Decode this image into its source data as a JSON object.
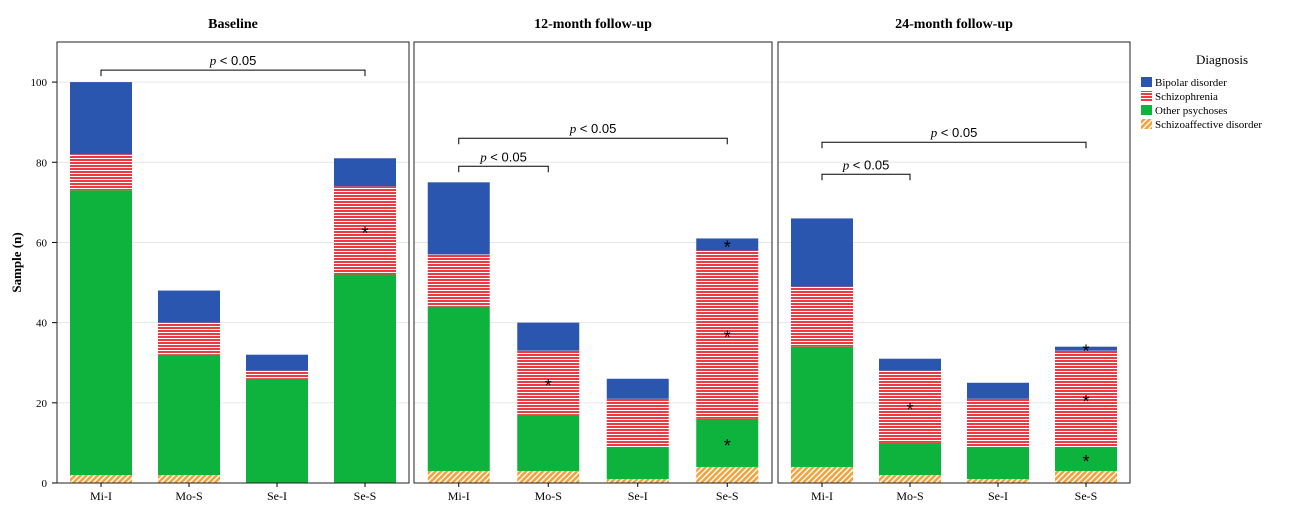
{
  "chart_data": {
    "type": "bar",
    "stacked": true,
    "ylabel": "Sample (n)",
    "ylim": [
      0,
      110
    ],
    "yticks": [
      0,
      20,
      40,
      60,
      80,
      100
    ],
    "categories": [
      "Mi-I",
      "Mo-S",
      "Se-I",
      "Se-S"
    ],
    "legend": {
      "title": "Diagnosis",
      "position": "right",
      "items": [
        {
          "key": "bipolar",
          "label": "Bipolar disorder"
        },
        {
          "key": "schizophrenia",
          "label": "Schizophrenia"
        },
        {
          "key": "other",
          "label": "Other psychoses"
        },
        {
          "key": "schizoaffective",
          "label": "Schizoaffective disorder"
        }
      ]
    },
    "colors": {
      "bipolar": "#2b56b0",
      "schizophrenia": "#ee3b43",
      "other": "#0db33c",
      "schizoaffective": "#f2a23c"
    },
    "stack_order": [
      "schizoaffective",
      "other",
      "schizophrenia",
      "bipolar"
    ],
    "panels": [
      {
        "title": "Baseline",
        "series": [
          {
            "key": "schizoaffective",
            "values": [
              2,
              2,
              0,
              0
            ]
          },
          {
            "key": "other",
            "values": [
              71,
              30,
              26,
              52
            ]
          },
          {
            "key": "schizophrenia",
            "values": [
              9,
              8,
              2,
              22
            ]
          },
          {
            "key": "bipolar",
            "values": [
              18,
              8,
              4,
              7
            ]
          }
        ],
        "significance": [
          {
            "from": 0,
            "to": 3,
            "level": 103,
            "p": "p",
            "text": " < 0.05"
          }
        ],
        "stars": [
          {
            "category": 3,
            "series": "schizophrenia"
          }
        ]
      },
      {
        "title": "12-month follow-up",
        "series": [
          {
            "key": "schizoaffective",
            "values": [
              3,
              3,
              1,
              4
            ]
          },
          {
            "key": "other",
            "values": [
              41,
              14,
              8,
              12
            ]
          },
          {
            "key": "schizophrenia",
            "values": [
              13,
              16,
              12,
              42
            ]
          },
          {
            "key": "bipolar",
            "values": [
              18,
              7,
              5,
              3
            ]
          }
        ],
        "significance": [
          {
            "from": 0,
            "to": 3,
            "level": 86,
            "p": "p",
            "text": " < 0.05"
          },
          {
            "from": 0,
            "to": 1,
            "level": 79,
            "p": "p",
            "text": " < 0.05"
          }
        ],
        "stars": [
          {
            "category": 1,
            "series": "schizophrenia"
          },
          {
            "category": 3,
            "series": "other"
          },
          {
            "category": 3,
            "series": "schizophrenia"
          },
          {
            "category": 3,
            "series": "bipolar"
          }
        ]
      },
      {
        "title": "24-month follow-up",
        "series": [
          {
            "key": "schizoaffective",
            "values": [
              4,
              2,
              1,
              3
            ]
          },
          {
            "key": "other",
            "values": [
              30,
              8,
              8,
              6
            ]
          },
          {
            "key": "schizophrenia",
            "values": [
              15,
              18,
              12,
              24
            ]
          },
          {
            "key": "bipolar",
            "values": [
              17,
              3,
              4,
              1
            ]
          }
        ],
        "significance": [
          {
            "from": 0,
            "to": 3,
            "level": 85,
            "p": "p",
            "text": " < 0.05"
          },
          {
            "from": 0,
            "to": 1,
            "level": 77,
            "p": "p",
            "text": " < 0.05"
          }
        ],
        "stars": [
          {
            "category": 1,
            "series": "schizophrenia"
          },
          {
            "category": 3,
            "series": "other"
          },
          {
            "category": 3,
            "series": "schizophrenia"
          },
          {
            "category": 3,
            "series": "bipolar"
          }
        ]
      }
    ]
  }
}
